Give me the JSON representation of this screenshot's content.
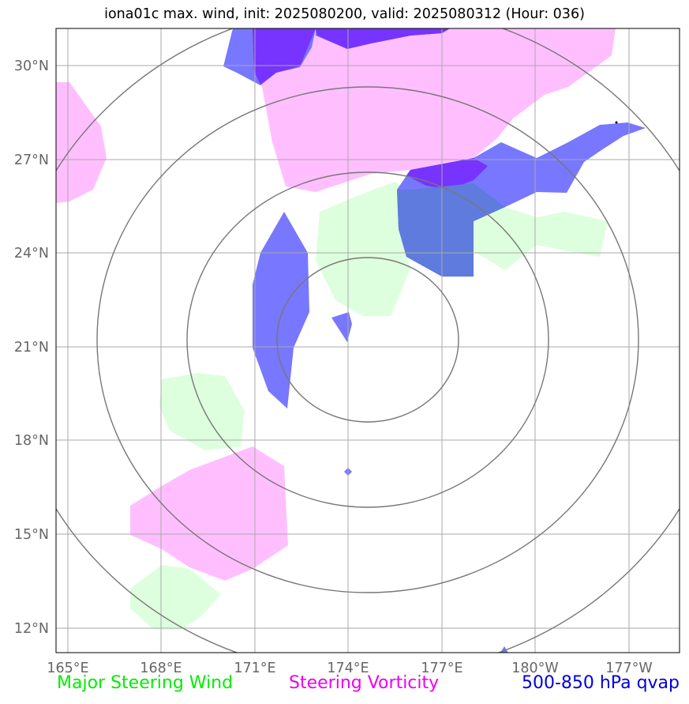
{
  "title": "iona01c max. wind, init: 2025080200, valid: 2025080312 (Hour: 036)",
  "latitude_ticks": [
    "30°N",
    "27°N",
    "24°N",
    "21°N",
    "18°N",
    "15°N",
    "12°N"
  ],
  "longitude_ticks": [
    "165°E",
    "168°E",
    "171°E",
    "174°E",
    "177°E",
    "180°W",
    "177°W"
  ],
  "legend": {
    "wind": "Major Steering Wind",
    "vorticity": "Steering Vorticity",
    "qvap": "500-850 hPa qvap"
  },
  "colors": {
    "wind": "#ddffdd",
    "vorticity": "#ffbfff",
    "qvap": "#7777ff",
    "overlap": "#7733ff",
    "rings": "#777777",
    "grid": "#aaaaaa"
  }
}
